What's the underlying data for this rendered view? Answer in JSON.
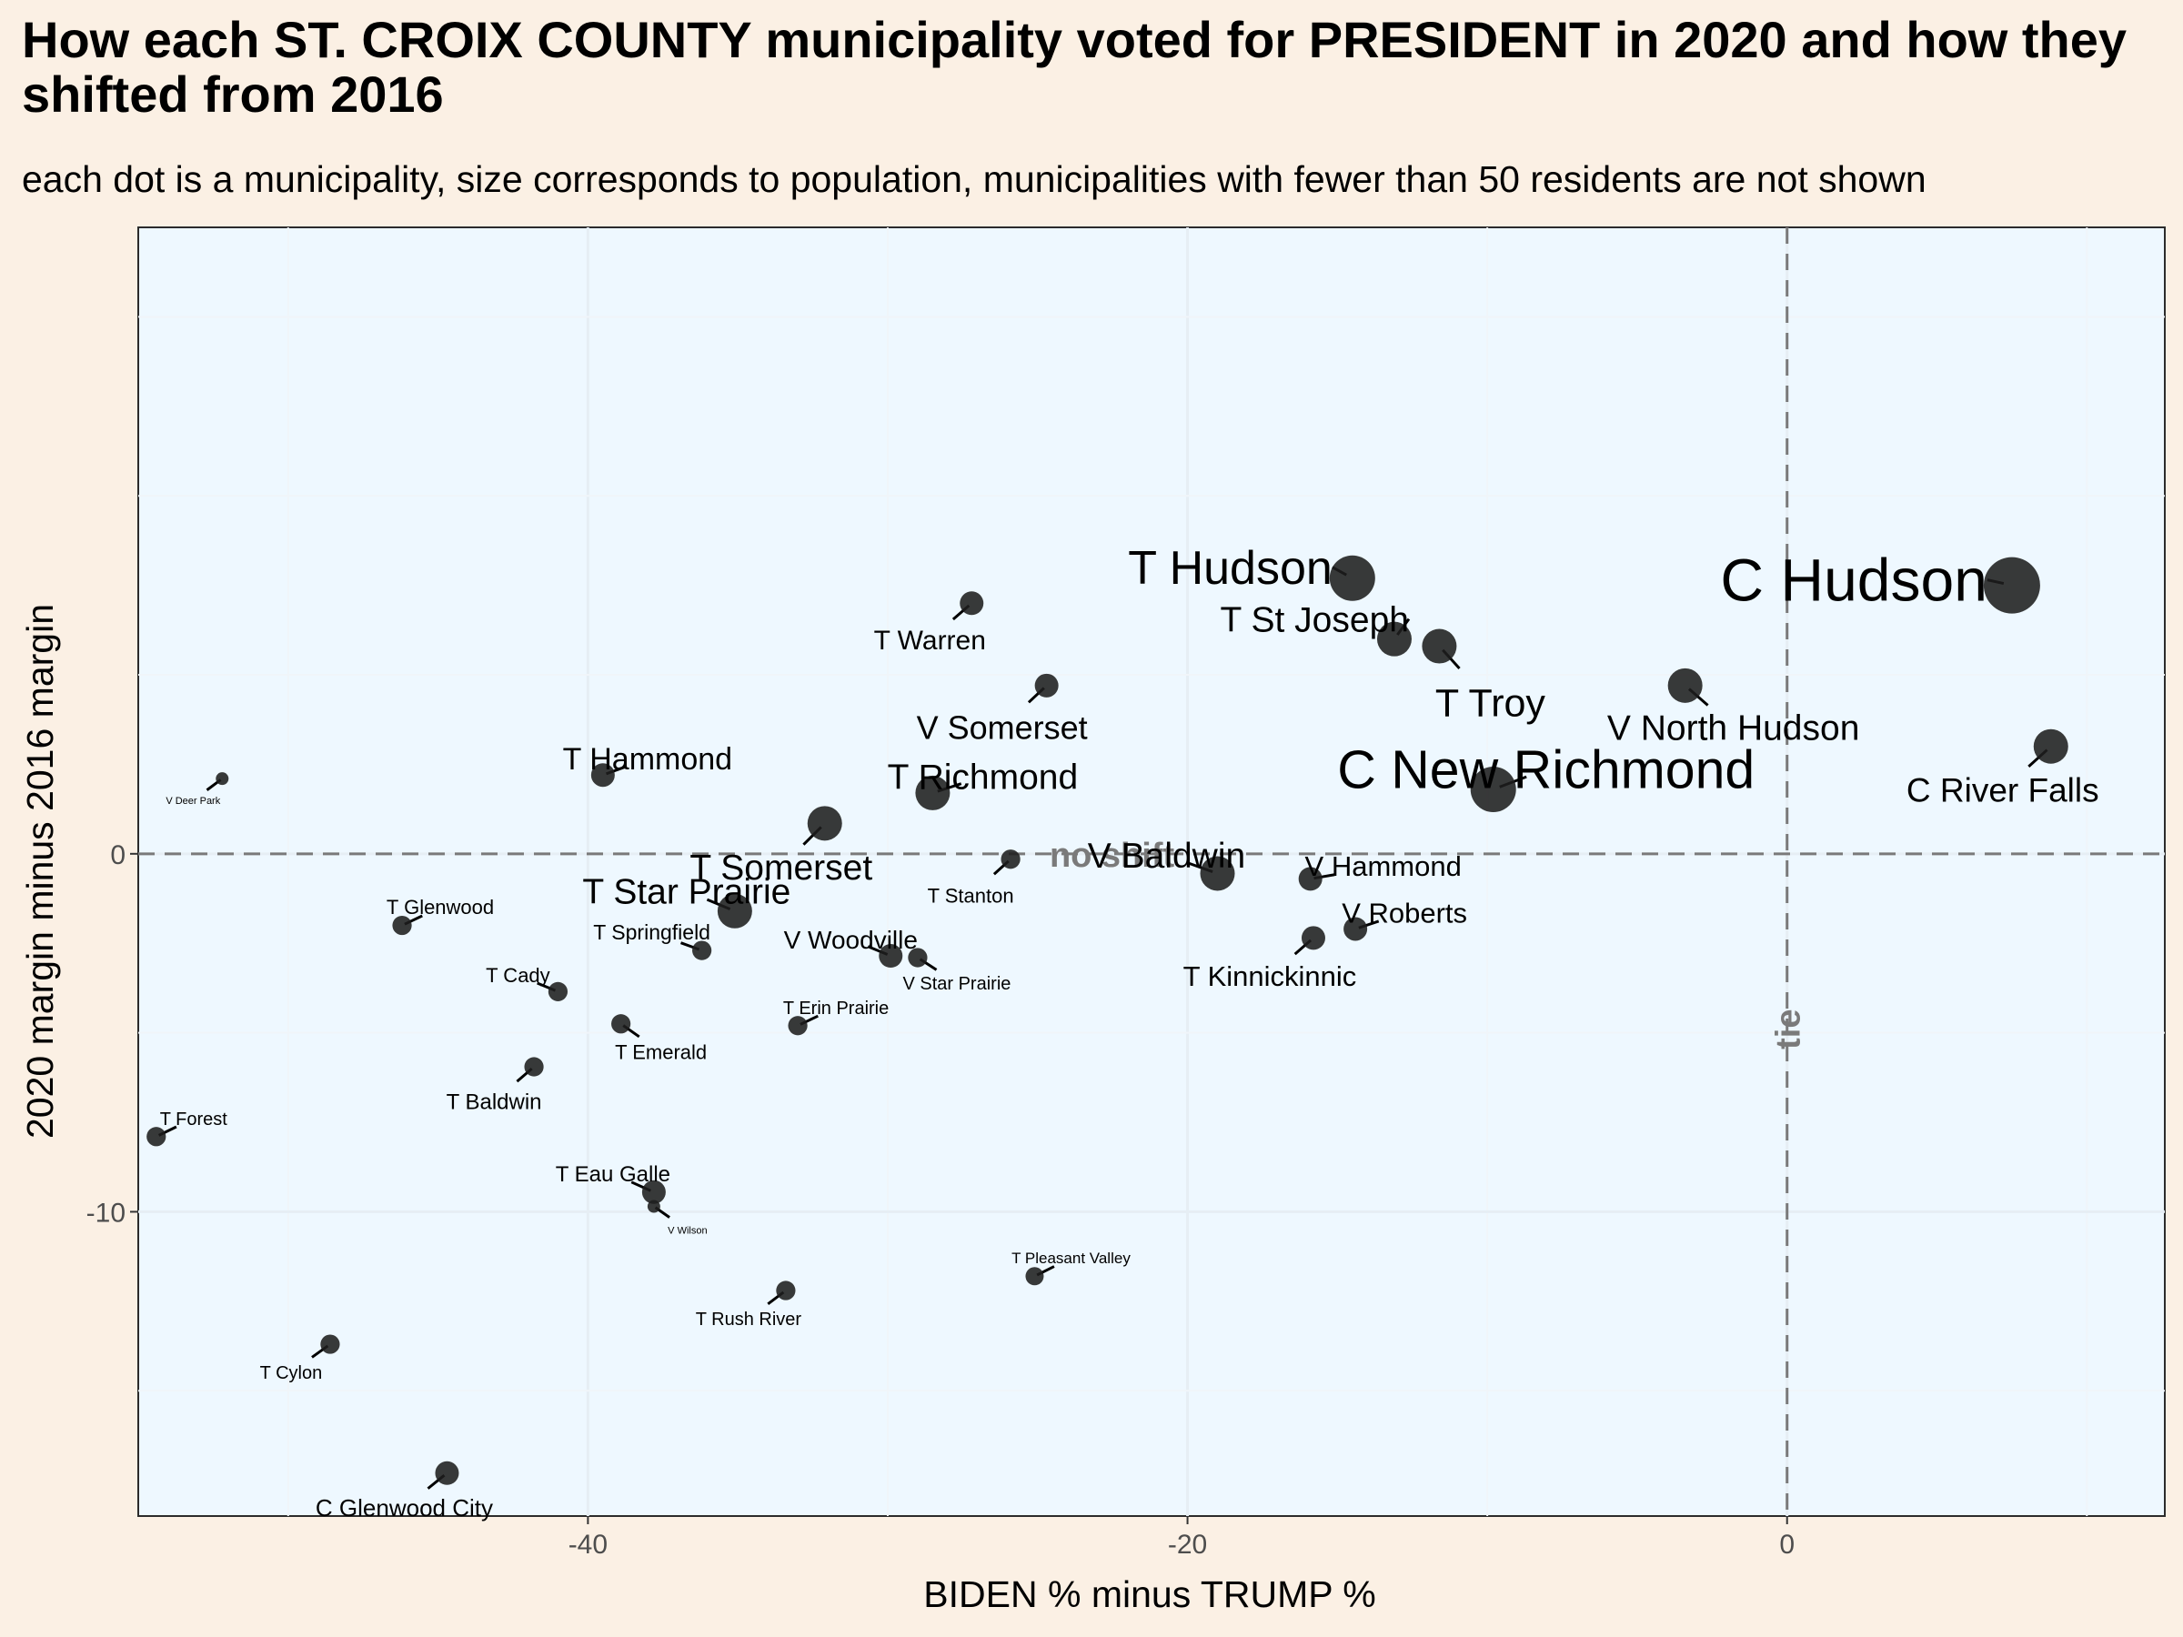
{
  "title": "How each ST. CROIX COUNTY municipality voted for PRESIDENT in 2020 and how they shifted from 2016",
  "subtitle": "each dot is a municipality, size corresponds to population, municipalities with fewer than 50 residents are not shown",
  "chart_data": {
    "type": "scatter",
    "xlabel": "BIDEN % minus TRUMP %",
    "ylabel": "2020 margin minus 2016 margin",
    "xlim": [
      -55.0,
      12.6
    ],
    "ylim": [
      -18.5,
      17.5
    ],
    "xticks": [
      -40,
      -20,
      0
    ],
    "yticks": [
      -10,
      0
    ],
    "x_tick_labels": [
      "-40",
      "-20",
      "0"
    ],
    "y_tick_labels": [
      "-10",
      "0"
    ],
    "grid": true,
    "reference_lines": [
      {
        "orientation": "horizontal",
        "value": 0,
        "label": "no shift"
      },
      {
        "orientation": "vertical",
        "value": 0,
        "label": "tie"
      }
    ],
    "colors": {
      "panel": "#eef8ff",
      "point": "#1e1e1e",
      "reference": "#7a7a7a",
      "grid": "#ffffff"
    },
    "points": [
      {
        "label": "C Hudson",
        "x": 7.5,
        "y": 7.5,
        "size": 4
      },
      {
        "label": "T Hudson",
        "x": -14.5,
        "y": 7.7,
        "size": 3
      },
      {
        "label": "T St Joseph",
        "x": -13.1,
        "y": 6.0,
        "size": 2
      },
      {
        "label": "T Troy",
        "x": -11.6,
        "y": 5.8,
        "size": 2
      },
      {
        "label": "T Warren",
        "x": -27.2,
        "y": 7.0,
        "size": 1
      },
      {
        "label": "V North Hudson",
        "x": -3.4,
        "y": 4.7,
        "size": 2
      },
      {
        "label": "V Somerset",
        "x": -24.7,
        "y": 4.7,
        "size": 1
      },
      {
        "label": "C River Falls",
        "x": 8.8,
        "y": 3.0,
        "size": 2
      },
      {
        "label": "C New Richmond",
        "x": -9.8,
        "y": 1.8,
        "size": 3
      },
      {
        "label": "T Richmond",
        "x": -28.5,
        "y": 1.7,
        "size": 2
      },
      {
        "label": "T Hammond",
        "x": -39.5,
        "y": 2.2,
        "size": 1
      },
      {
        "label": "V Deer Park",
        "x": -52.2,
        "y": 2.1,
        "size": 0
      },
      {
        "label": "T Somerset",
        "x": -32.1,
        "y": 0.85,
        "size": 2
      },
      {
        "label": "T Stanton",
        "x": -25.9,
        "y": -0.15,
        "size": 0.6
      },
      {
        "label": "V Baldwin",
        "x": -19.0,
        "y": -0.55,
        "size": 2
      },
      {
        "label": "V Hammond",
        "x": -15.9,
        "y": -0.7,
        "size": 1
      },
      {
        "label": "T Star Prairie",
        "x": -35.1,
        "y": -1.6,
        "size": 2
      },
      {
        "label": "T Glenwood",
        "x": -46.2,
        "y": -2.0,
        "size": 0.6
      },
      {
        "label": "V Roberts",
        "x": -14.4,
        "y": -2.1,
        "size": 1
      },
      {
        "label": "T Kinnickinnic",
        "x": -15.8,
        "y": -2.35,
        "size": 1
      },
      {
        "label": "T Springfield",
        "x": -36.2,
        "y": -2.7,
        "size": 0.6
      },
      {
        "label": "V Woodville",
        "x": -29.9,
        "y": -2.85,
        "size": 1
      },
      {
        "label": "V Star Prairie",
        "x": -29.0,
        "y": -2.9,
        "size": 0.6
      },
      {
        "label": "T Cady",
        "x": -41.0,
        "y": -3.85,
        "size": 0.6
      },
      {
        "label": "T Emerald",
        "x": -38.9,
        "y": -4.75,
        "size": 0.6
      },
      {
        "label": "T Erin Prairie",
        "x": -33.0,
        "y": -4.8,
        "size": 0.6
      },
      {
        "label": "T Baldwin",
        "x": -41.8,
        "y": -5.95,
        "size": 0.6
      },
      {
        "label": "T Forest",
        "x": -54.4,
        "y": -7.9,
        "size": 0.6
      },
      {
        "label": "T Eau Galle",
        "x": -37.8,
        "y": -9.45,
        "size": 1
      },
      {
        "label": "V Wilson",
        "x": -37.8,
        "y": -9.85,
        "size": 0
      },
      {
        "label": "T Pleasant Valley",
        "x": -25.1,
        "y": -11.8,
        "size": 0.5
      },
      {
        "label": "T Rush River",
        "x": -33.4,
        "y": -12.2,
        "size": 0.6
      },
      {
        "label": "T Cylon",
        "x": -48.6,
        "y": -13.7,
        "size": 0.6
      },
      {
        "label": "C Glenwood City",
        "x": -44.7,
        "y": -17.3,
        "size": 1
      }
    ]
  }
}
